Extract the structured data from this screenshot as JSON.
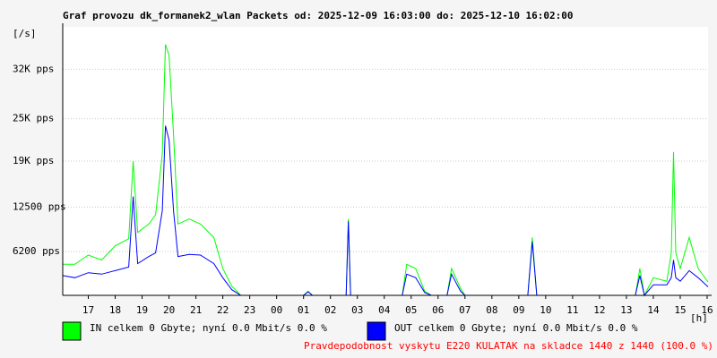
{
  "chart_data": {
    "type": "line",
    "title": "Graf provozu dk_formanek2_wlan Packets od: 2025-12-09 16:03:00 do: 2025-12-10 16:02:00",
    "y_unit": "[/s]",
    "x_unit": "[h]",
    "x": [
      "16:03",
      "16:30",
      "17:00",
      "17:30",
      "18:00",
      "18:30",
      "18:40",
      "18:50",
      "19:15",
      "19:30",
      "19:45",
      "19:52",
      "20:00",
      "20:10",
      "20:20",
      "20:45",
      "21:10",
      "21:40",
      "22:00",
      "22:20",
      "22:40",
      "01:00",
      "01:10",
      "01:20",
      "02:35",
      "02:40",
      "02:45",
      "04:40",
      "04:50",
      "05:10",
      "05:30",
      "05:45",
      "06:20",
      "06:30",
      "06:50",
      "07:00",
      "09:20",
      "09:30",
      "09:40",
      "13:20",
      "13:30",
      "13:40",
      "14:00",
      "14:30",
      "14:40",
      "14:45",
      "14:50",
      "15:00",
      "15:20",
      "15:40",
      "16:02"
    ],
    "xlim": [
      "16:03",
      "16:02"
    ],
    "xticks": [
      {
        "value": "17:00",
        "label": "17"
      },
      {
        "value": "18:00",
        "label": "18"
      },
      {
        "value": "19:00",
        "label": "19"
      },
      {
        "value": "20:00",
        "label": "20"
      },
      {
        "value": "21:00",
        "label": "21"
      },
      {
        "value": "22:00",
        "label": "22"
      },
      {
        "value": "23:00",
        "label": "23"
      },
      {
        "value": "00:00",
        "label": "00"
      },
      {
        "value": "01:00",
        "label": "01"
      },
      {
        "value": "02:00",
        "label": "02"
      },
      {
        "value": "03:00",
        "label": "03"
      },
      {
        "value": "04:00",
        "label": "04"
      },
      {
        "value": "05:00",
        "label": "05"
      },
      {
        "value": "06:00",
        "label": "06"
      },
      {
        "value": "07:00",
        "label": "07"
      },
      {
        "value": "08:00",
        "label": "08"
      },
      {
        "value": "09:00",
        "label": "09"
      },
      {
        "value": "10:00",
        "label": "10"
      },
      {
        "value": "11:00",
        "label": "11"
      },
      {
        "value": "12:00",
        "label": "12"
      },
      {
        "value": "13:00",
        "label": "13"
      },
      {
        "value": "14:00",
        "label": "14"
      },
      {
        "value": "15:00",
        "label": "15"
      },
      {
        "value": "16:00",
        "label": "16"
      }
    ],
    "ylim": [
      0,
      38000
    ],
    "yticks": [
      {
        "value": 6200,
        "label": "6200 pps"
      },
      {
        "value": 12500,
        "label": "12500 pps"
      },
      {
        "value": 19000,
        "label": "19K pps"
      },
      {
        "value": 25000,
        "label": "25K pps"
      },
      {
        "value": 32000,
        "label": "32K pps"
      }
    ],
    "series": [
      {
        "name": "IN celkem 0 Gbyte; nyní   0.0 Mbit/s 0.0 %",
        "color": "#00ff00",
        "values": [
          4400,
          4400,
          5700,
          5000,
          7000,
          8000,
          19000,
          8900,
          10100,
          11400,
          20000,
          35500,
          34000,
          22800,
          10100,
          10800,
          10100,
          8200,
          3800,
          1300,
          0,
          0,
          600,
          0,
          0,
          10800,
          0,
          0,
          4400,
          3800,
          600,
          0,
          0,
          3800,
          1000,
          0,
          0,
          8200,
          0,
          0,
          3800,
          0,
          2500,
          2000,
          6000,
          20300,
          6000,
          3800,
          8200,
          3800,
          1900
        ]
      },
      {
        "name": "OUT celkem 0 Gbyte; nyní   0.0 Mbit/s 0.0 %",
        "color": "#0000ff",
        "values": [
          2800,
          2500,
          3200,
          3000,
          3500,
          4000,
          14000,
          4500,
          5500,
          6000,
          12000,
          24000,
          22000,
          12000,
          5500,
          5800,
          5700,
          4500,
          2500,
          800,
          0,
          0,
          500,
          0,
          0,
          10500,
          0,
          0,
          3000,
          2500,
          400,
          0,
          0,
          3000,
          600,
          0,
          0,
          7600,
          0,
          0,
          2800,
          0,
          1500,
          1500,
          2500,
          5000,
          2500,
          2000,
          3500,
          2500,
          1200
        ]
      }
    ],
    "footer": "Pravdepodobnost vyskytu E220 KULATAK na skladce 1440 z 1440 (100.0 %)",
    "footer_color": "#ff0000",
    "grid": true
  }
}
